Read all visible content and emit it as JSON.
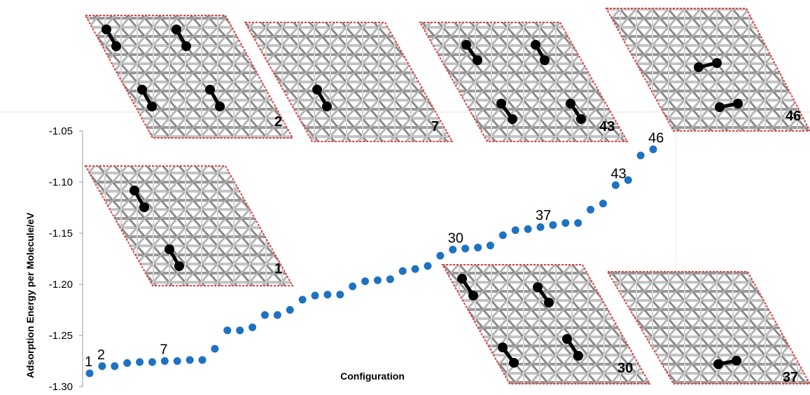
{
  "chart_data": {
    "type": "scatter",
    "title": "",
    "xlabel": "Configuration",
    "ylabel": "Adsorption  Energy per Molecule/eV",
    "ylim": [
      -1.3,
      -1.05
    ],
    "yticks": [
      "-1.05",
      "-1.10",
      "-1.15",
      "-1.20",
      "-1.25",
      "-1.30"
    ],
    "grid": false,
    "color": "#1f72c0",
    "series": [
      {
        "x": [
          1,
          2,
          3,
          4,
          5,
          6,
          7,
          8,
          9,
          10,
          11,
          12,
          13,
          14,
          15,
          16,
          17,
          18,
          19,
          20,
          21,
          22,
          23,
          24,
          25,
          26,
          27,
          28,
          29,
          30,
          31,
          32,
          33,
          34,
          35,
          36,
          37,
          38,
          39,
          40,
          41,
          42,
          43,
          44,
          45,
          46
        ],
        "y": [
          -1.287,
          -1.28,
          -1.28,
          -1.277,
          -1.276,
          -1.276,
          -1.275,
          -1.275,
          -1.274,
          -1.274,
          -1.263,
          -1.245,
          -1.245,
          -1.242,
          -1.23,
          -1.23,
          -1.225,
          -1.215,
          -1.211,
          -1.21,
          -1.21,
          -1.202,
          -1.197,
          -1.196,
          -1.195,
          -1.187,
          -1.185,
          -1.182,
          -1.172,
          -1.166,
          -1.165,
          -1.164,
          -1.162,
          -1.152,
          -1.147,
          -1.146,
          -1.144,
          -1.142,
          -1.14,
          -1.14,
          -1.127,
          -1.121,
          -1.103,
          -1.098,
          -1.074,
          -1.068
        ]
      }
    ],
    "point_labels": [
      {
        "x": 1,
        "text": "1"
      },
      {
        "x": 2,
        "text": "2"
      },
      {
        "x": 7,
        "text": "7"
      },
      {
        "x": 30,
        "text": "30"
      },
      {
        "x": 37,
        "text": "37"
      },
      {
        "x": 43,
        "text": "43"
      },
      {
        "x": 46,
        "text": "46"
      }
    ]
  },
  "insets": [
    {
      "label": "2"
    },
    {
      "label": "7"
    },
    {
      "label": "43"
    },
    {
      "label": "46"
    },
    {
      "label": "1"
    },
    {
      "label": "30"
    },
    {
      "label": "37"
    }
  ]
}
